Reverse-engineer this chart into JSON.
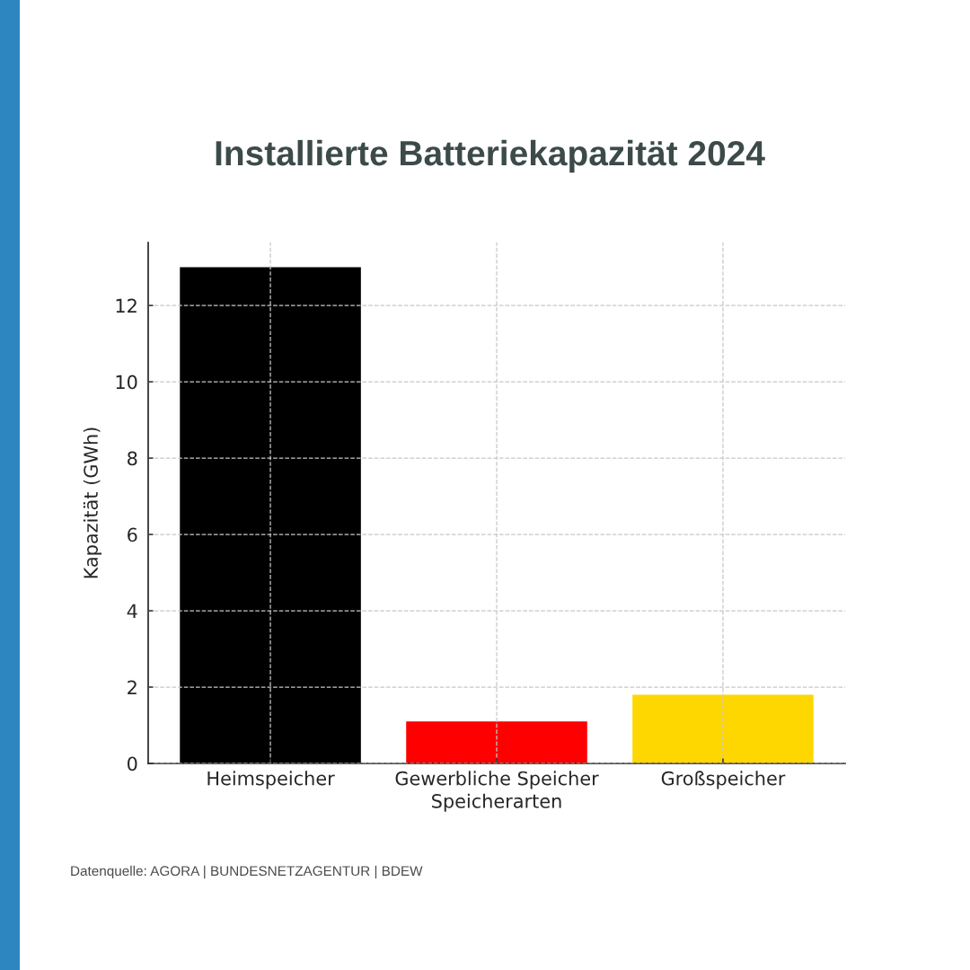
{
  "chart_data": {
    "type": "bar",
    "title": "Installierte Batteriekapazität 2024",
    "xlabel": "Speicherarten",
    "ylabel": "Kapazität (GWh)",
    "categories": [
      "Heimspeicher",
      "Gewerbliche Speicher",
      "Großspeicher"
    ],
    "values": [
      13,
      1.1,
      1.8
    ],
    "colors": [
      "#000000",
      "#ff0000",
      "#ffd700"
    ],
    "ylim": [
      0,
      13.65
    ],
    "yticks": [
      0,
      2,
      4,
      6,
      8,
      10,
      12
    ],
    "grid": true,
    "annotations": [
      "Datenquelle: AGORA | BUNDESNETZAGENTUR | BDEW"
    ]
  }
}
